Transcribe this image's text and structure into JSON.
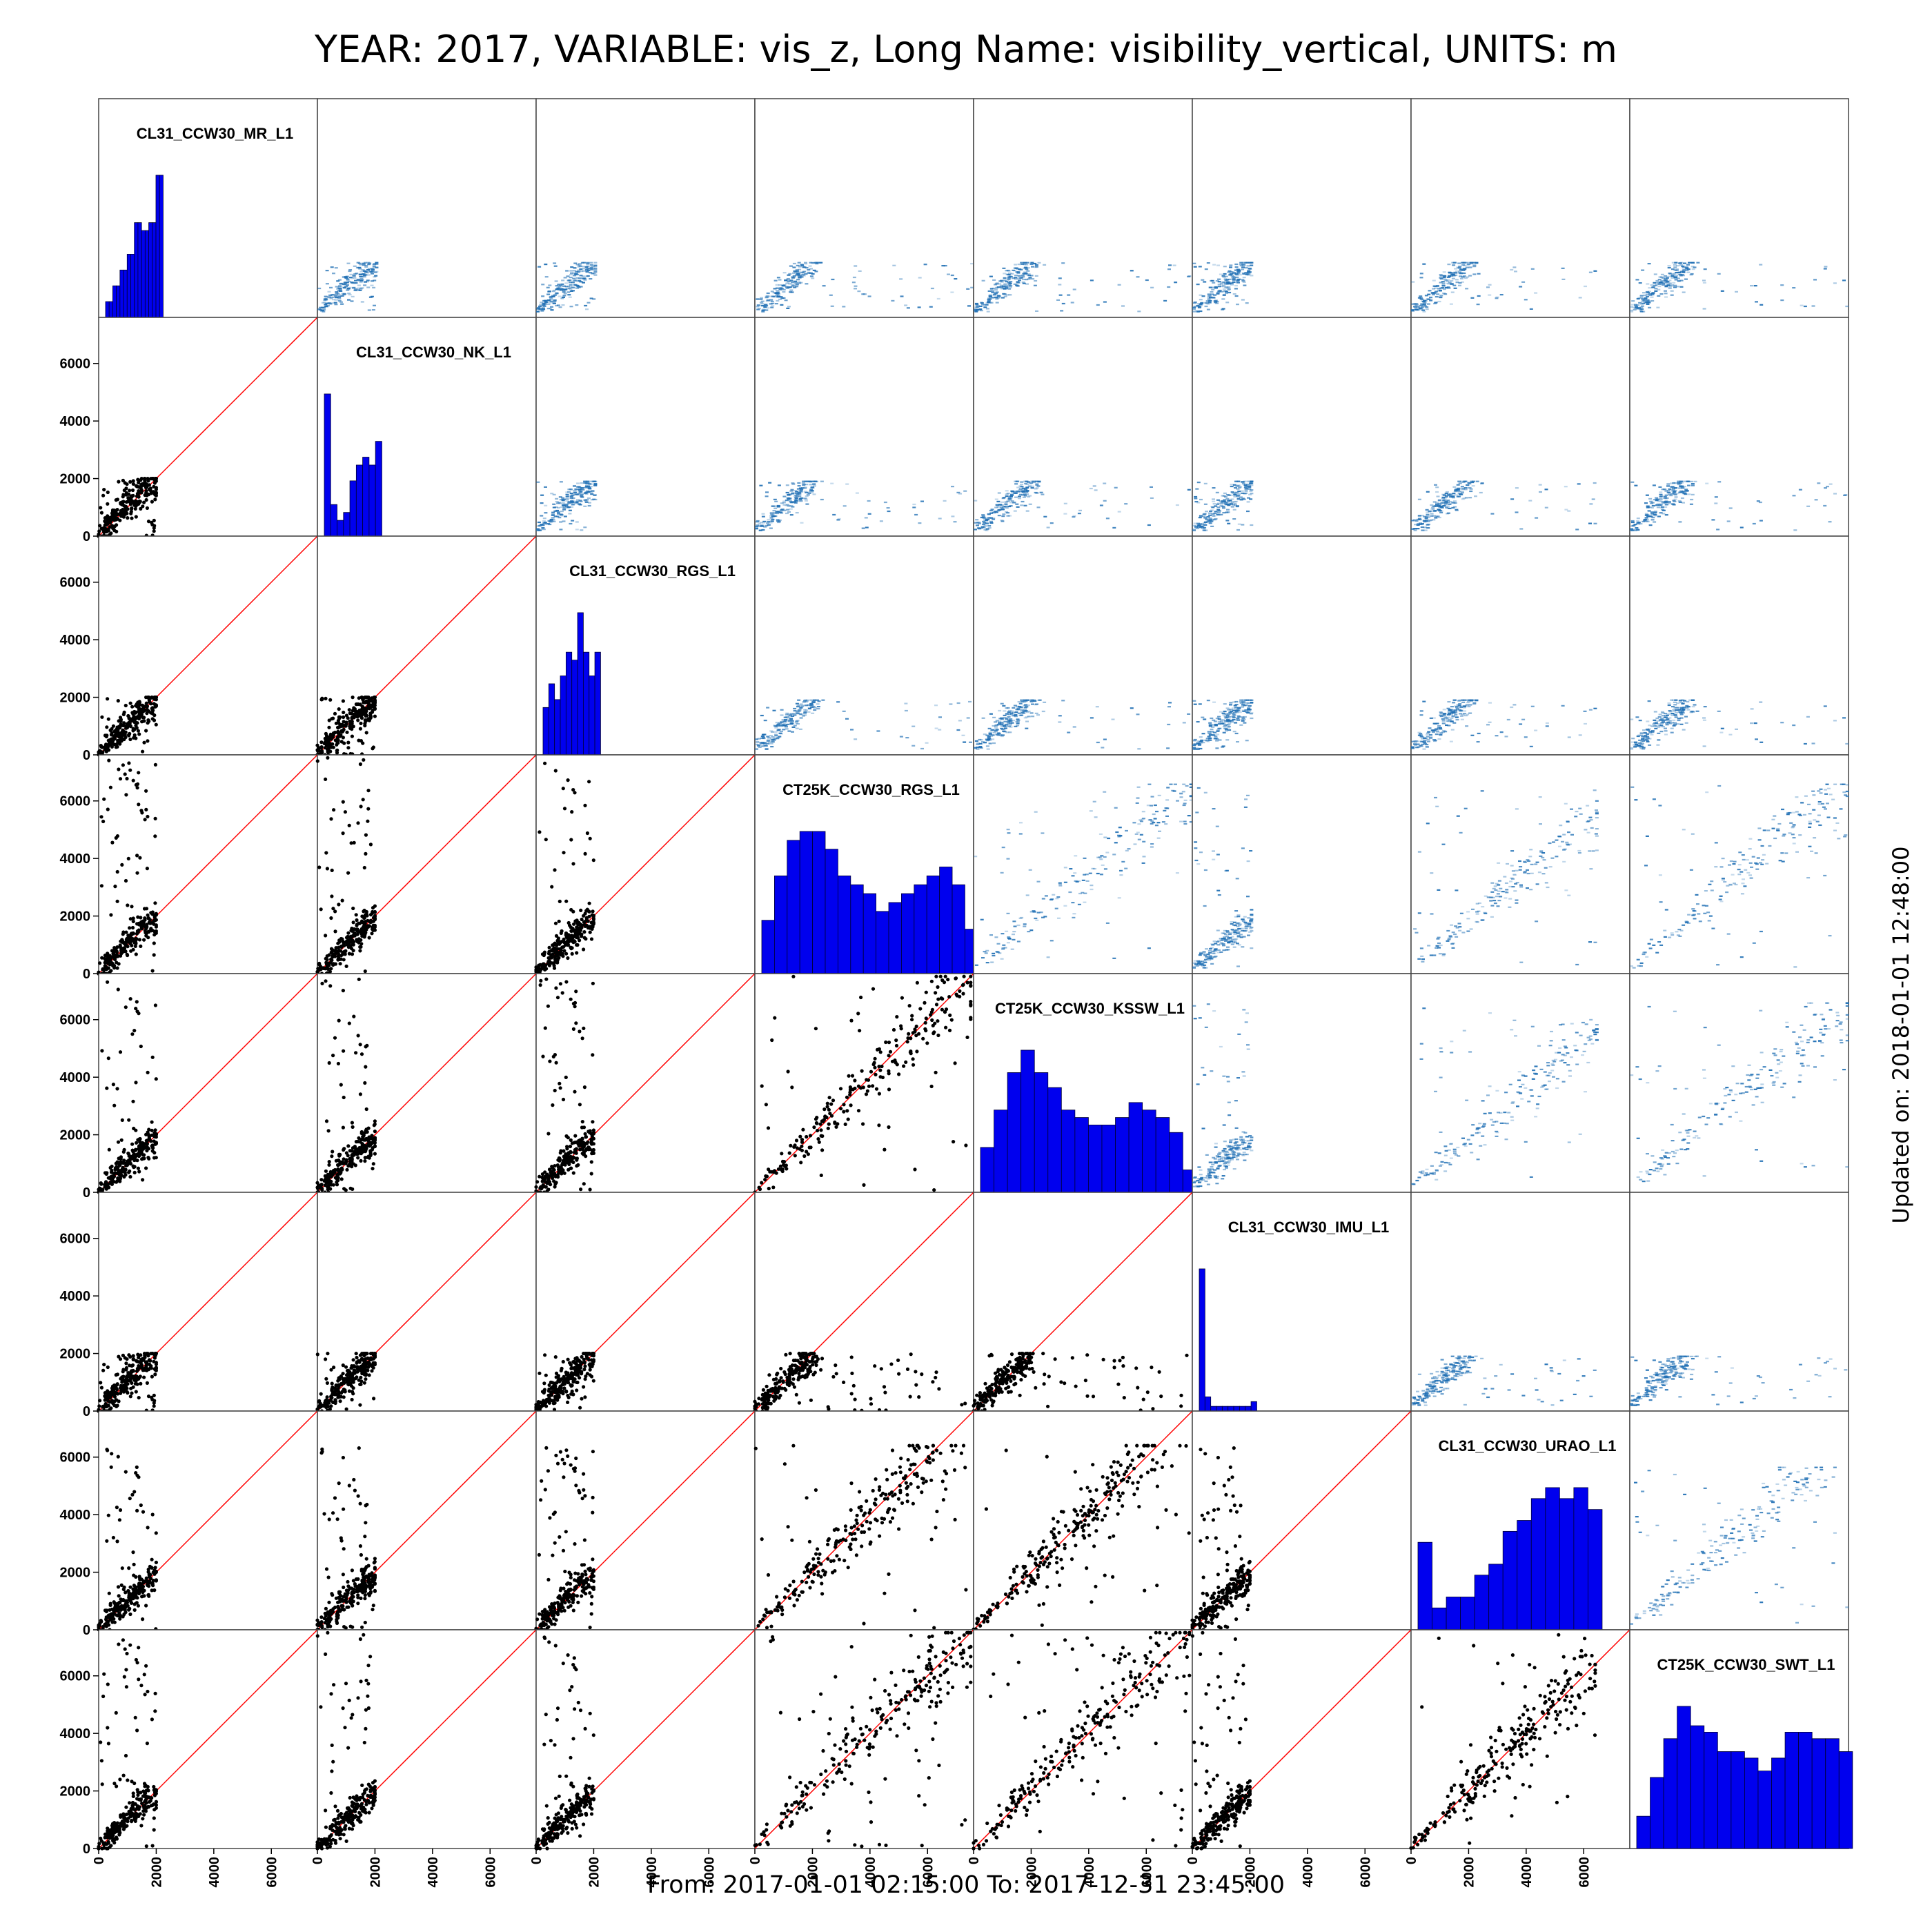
{
  "header": {
    "title": "YEAR: 2017, VARIABLE: vis_z, Long Name: visibility_vertical, UNITS: m"
  },
  "footer": {
    "range": "From: 2017-01-01 02:15:00 To: 2017-12-31 23:45:00"
  },
  "side": {
    "updated": "Updated on: 2018-01-01 12:48:00"
  },
  "colors": {
    "histogram_fill": "#0000ee",
    "scatter_points": "#000000",
    "identity_line": "#ff0000",
    "density": "#1f6fb4"
  },
  "chart_data": {
    "type": "scatter",
    "subtype": "scatter-matrix",
    "stations": [
      "CL31_CCW30_MR_L1",
      "CL31_CCW30_NK_L1",
      "CL31_CCW30_RGS_L1",
      "CT25K_CCW30_RGS_L1",
      "CT25K_CCW30_KSSW_L1",
      "CL31_CCW30_IMU_L1",
      "CL31_CCW30_URAO_L1",
      "CT25K_CCW30_SWT_L1"
    ],
    "station_max": [
      2000,
      2000,
      2000,
      7500,
      7500,
      2000,
      6400,
      7500
    ],
    "axis_range": [
      0,
      7600
    ],
    "y_ticks": [
      0,
      2000,
      4000,
      6000
    ],
    "x_ticks": [
      0,
      2000,
      4000,
      6000
    ],
    "diagonal": "histogram",
    "lower_triangle": "scatter with identity line",
    "upper_triangle": "2d density",
    "histograms": [
      [
        2,
        2,
        4,
        4,
        6,
        6,
        8,
        8,
        12,
        12,
        11,
        11,
        12,
        12,
        18,
        18
      ],
      [
        18,
        4,
        2,
        3,
        7,
        9,
        10,
        9,
        12
      ],
      [
        6,
        9,
        7,
        10,
        13,
        12,
        18,
        13,
        10,
        13
      ],
      [
        6,
        11,
        15,
        16,
        16,
        14,
        11,
        10,
        9,
        7,
        8,
        9,
        10,
        11,
        12,
        10,
        5
      ],
      [
        6,
        11,
        16,
        19,
        16,
        14,
        11,
        10,
        9,
        9,
        10,
        12,
        11,
        10,
        8,
        3
      ],
      [
        30,
        3,
        1,
        1,
        1,
        1,
        1,
        1,
        1,
        2
      ],
      [
        8,
        2,
        3,
        3,
        5,
        6,
        9,
        10,
        12,
        13,
        12,
        13,
        11
      ],
      [
        5,
        11,
        17,
        22,
        19,
        18,
        15,
        15,
        14,
        12,
        14,
        18,
        18,
        17,
        17,
        15
      ]
    ],
    "title": "YEAR: 2017, VARIABLE: vis_z, Long Name: visibility_vertical, UNITS: m",
    "xlabel": "",
    "ylabel": ""
  }
}
